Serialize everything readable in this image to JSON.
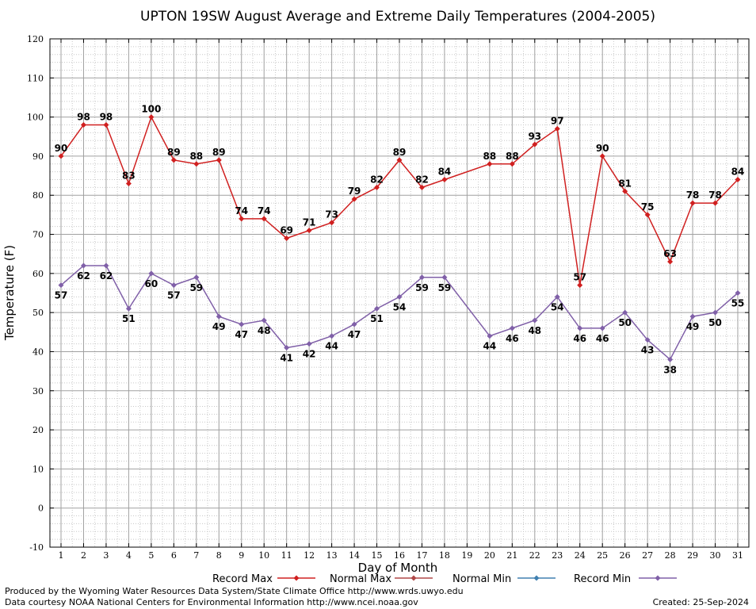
{
  "chart_data": {
    "type": "line",
    "title": "UPTON 19SW August Average and Extreme Daily Temperatures (2004-2005)",
    "xlabel": "Day of Month",
    "ylabel": "Temperature (F)",
    "ylim": [
      -10,
      120
    ],
    "yticks": [
      -10,
      0,
      10,
      20,
      30,
      40,
      50,
      60,
      70,
      80,
      90,
      100,
      110,
      120
    ],
    "x": [
      1,
      2,
      3,
      4,
      5,
      6,
      7,
      8,
      9,
      10,
      11,
      12,
      13,
      14,
      15,
      16,
      17,
      18,
      19,
      20,
      21,
      22,
      23,
      24,
      25,
      26,
      27,
      28,
      29,
      30,
      31
    ],
    "grid": true,
    "series": [
      {
        "name": "Record Max",
        "color": "#d02020",
        "points": [
          [
            1,
            90
          ],
          [
            2,
            98
          ],
          [
            3,
            98
          ],
          [
            4,
            83
          ],
          [
            5,
            100
          ],
          [
            6,
            89
          ],
          [
            7,
            88
          ],
          [
            8,
            89
          ],
          [
            9,
            74
          ],
          [
            10,
            74
          ],
          [
            11,
            69
          ],
          [
            12,
            71
          ],
          [
            13,
            73
          ],
          [
            14,
            79
          ],
          [
            15,
            82
          ],
          [
            16,
            89
          ],
          [
            17,
            82
          ],
          [
            18,
            84
          ],
          [
            20,
            88
          ],
          [
            21,
            88
          ],
          [
            22,
            93
          ],
          [
            23,
            97
          ],
          [
            24,
            57
          ],
          [
            25,
            90
          ],
          [
            26,
            81
          ],
          [
            27,
            75
          ],
          [
            28,
            63
          ],
          [
            29,
            78
          ],
          [
            30,
            78
          ],
          [
            31,
            84
          ]
        ]
      },
      {
        "name": "Normal Max",
        "color": "#b04848",
        "points": []
      },
      {
        "name": "Normal Min",
        "color": "#4080b0",
        "points": []
      },
      {
        "name": "Record Min",
        "color": "#8060a8",
        "points": [
          [
            1,
            57
          ],
          [
            2,
            62
          ],
          [
            3,
            62
          ],
          [
            4,
            51
          ],
          [
            5,
            60
          ],
          [
            6,
            57
          ],
          [
            7,
            59
          ],
          [
            8,
            49
          ],
          [
            9,
            47
          ],
          [
            10,
            48
          ],
          [
            11,
            41
          ],
          [
            12,
            42
          ],
          [
            13,
            44
          ],
          [
            14,
            47
          ],
          [
            15,
            51
          ],
          [
            16,
            54
          ],
          [
            17,
            59
          ],
          [
            18,
            59
          ],
          [
            20,
            44
          ],
          [
            21,
            46
          ],
          [
            22,
            48
          ],
          [
            23,
            54
          ],
          [
            24,
            46
          ],
          [
            25,
            46
          ],
          [
            26,
            50
          ],
          [
            27,
            43
          ],
          [
            28,
            38
          ],
          [
            29,
            49
          ],
          [
            30,
            50
          ],
          [
            31,
            55
          ]
        ]
      }
    ],
    "legend": [
      "Record Max",
      "Normal Max",
      "Normal Min",
      "Record Min"
    ]
  },
  "footer": {
    "produced": "Produced by the Wyoming Water Resources Data System/State Climate Office http://www.wrds.uwyo.edu",
    "courtesy": "Data courtesy NOAA National Centers for Environmental Information http://www.ncei.noaa.gov",
    "created": "Created:  25-Sep-2024"
  }
}
